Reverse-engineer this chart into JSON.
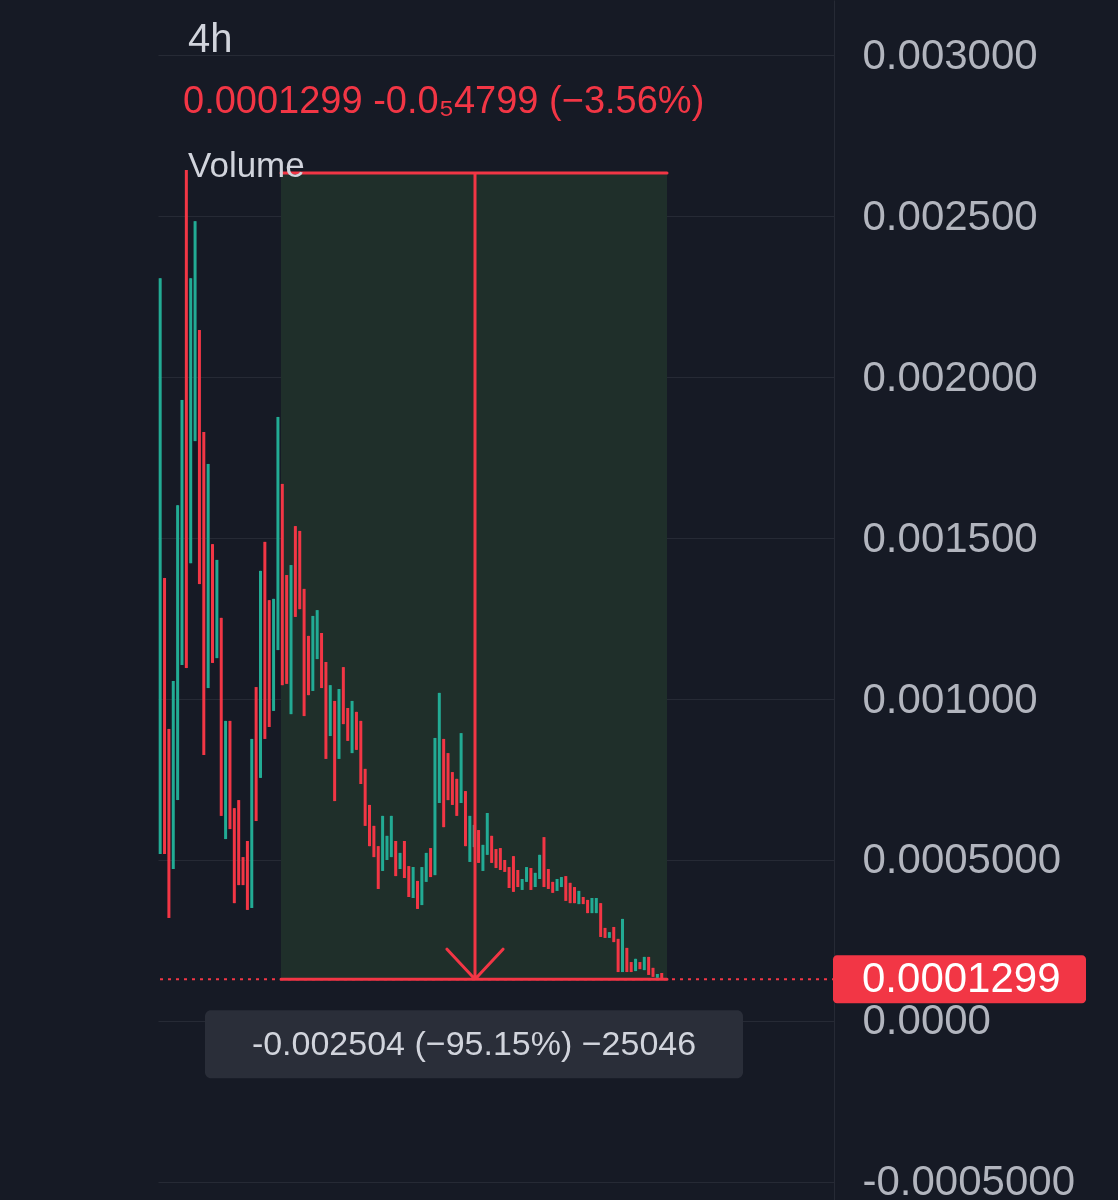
{
  "chart_data": {
    "type": "candlestick",
    "title": "4h",
    "subtitle": "0.0001299 -0.0₅4799 (−3.56%)",
    "annotations": [
      "Volume"
    ],
    "categories": [
      null,
      null,
      null,
      null,
      null,
      null,
      null,
      null,
      null,
      null,
      null,
      null,
      null,
      null,
      null,
      null,
      null,
      null,
      null,
      null,
      null,
      null,
      null,
      null,
      null,
      null,
      null,
      null,
      null,
      null,
      null,
      null,
      null,
      null,
      null,
      null,
      null,
      null,
      null,
      null,
      null,
      null,
      null,
      null,
      null,
      null,
      null,
      null,
      null,
      null,
      null,
      null,
      null,
      null,
      null,
      null,
      null,
      null,
      null,
      null,
      null,
      null,
      null,
      null,
      null,
      null,
      null,
      null,
      null,
      null,
      null,
      null,
      null,
      null,
      null,
      null,
      null,
      null,
      null,
      null,
      null,
      null,
      null,
      null,
      null,
      null,
      null,
      null,
      null,
      null,
      null,
      null,
      null,
      null,
      null,
      null,
      null,
      null,
      null,
      null,
      null,
      null,
      null,
      null,
      null,
      null,
      null,
      null,
      null,
      null,
      null,
      null,
      null,
      null,
      null,
      null,
      null,
      null,
      null,
      null,
      null,
      null,
      null,
      null,
      null,
      null,
      null,
      null,
      null,
      null,
      null,
      null,
      null,
      null,
      null,
      null,
      null,
      null,
      null,
      null,
      null,
      null,
      null,
      null,
      null,
      null,
      null,
      null,
      null,
      null,
      null,
      null,
      null,
      null,
      null
    ],
    "ohlc": [
      [
        0.000519,
        0.002307,
        0.000519,
        0.002307
      ],
      [
        0.001376,
        0.001376,
        0.000519,
        0.000519
      ],
      [
        0.000907,
        0.000907,
        0.00032,
        0.00032
      ],
      [
        0.000472,
        0.001056,
        0.000472,
        0.001056
      ],
      [
        0.000686,
        0.001602,
        0.000686,
        0.001602
      ],
      [
        0.001106,
        0.001929,
        0.001106,
        0.001929
      ],
      [
        0.002643,
        0.002643,
        0.001096,
        0.001096
      ],
      [
        0.001422,
        0.002307,
        0.001422,
        0.002307
      ],
      [
        0.001801,
        0.002484,
        0.001801,
        0.002484
      ],
      [
        0.002146,
        0.002146,
        0.001357,
        0.001357
      ],
      [
        0.001829,
        0.001829,
        0.000826,
        0.000826
      ],
      [
        0.001034,
        0.00173,
        0.001034,
        0.00173
      ],
      [
        0.001481,
        0.001481,
        0.001112,
        0.001112
      ],
      [
        0.001127,
        0.001432,
        0.001127,
        0.001432
      ],
      [
        0.001252,
        0.001252,
        0.000637,
        0.000637
      ],
      [
        0.000565,
        0.000932,
        0.000565,
        0.000932
      ],
      [
        0.000932,
        0.000932,
        0.000596,
        0.000596
      ],
      [
        0.000661,
        0.000661,
        0.000366,
        0.000366
      ],
      [
        0.000686,
        0.000686,
        0.000422,
        0.000422
      ],
      [
        0.000509,
        0.000509,
        0.000422,
        0.000422
      ],
      [
        0.000559,
        0.000559,
        0.000345,
        0.000345
      ],
      [
        0.000351,
        0.000876,
        0.000351,
        0.000876
      ],
      [
        0.001037,
        0.001037,
        0.000621,
        0.000621
      ],
      [
        0.000755,
        0.001398,
        0.000755,
        0.001398
      ],
      [
        0.001488,
        0.001488,
        0.000876,
        0.000876
      ],
      [
        0.001307,
        0.001307,
        0.000913,
        0.000913
      ],
      [
        0.000963,
        0.001311,
        0.000963,
        0.001311
      ],
      [
        0.001152,
        0.001876,
        0.001152,
        0.001876
      ],
      [
        0.001668,
        0.001668,
        0.001043,
        0.001043
      ],
      [
        0.001385,
        0.001385,
        0.001047,
        0.001047
      ],
      [
        0.000953,
        0.001416,
        0.000953,
        0.001416
      ],
      [
        0.001537,
        0.001537,
        0.001255,
        0.001255
      ],
      [
        0.001522,
        0.001522,
        0.001279,
        0.001279
      ],
      [
        0.001342,
        0.001342,
        0.000947,
        0.000947
      ],
      [
        0.001196,
        0.001196,
        0.001012,
        0.001012
      ],
      [
        0.001025,
        0.001258,
        0.001025,
        0.001258
      ],
      [
        0.001124,
        0.001276,
        0.001124,
        0.001276
      ],
      [
        0.001205,
        0.001205,
        0.001034,
        0.001034
      ],
      [
        0.001115,
        0.001115,
        0.000814,
        0.000814
      ],
      [
        0.000885,
        0.001043,
        0.000885,
        0.001043
      ],
      [
        0.000994,
        0.000994,
        0.000683,
        0.000683
      ],
      [
        0.000814,
        0.001031,
        0.000814,
        0.001031
      ],
      [
        0.001099,
        0.001099,
        0.000922,
        0.000922
      ],
      [
        0.000972,
        0.000972,
        0.00087,
        0.00087
      ],
      [
        0.000832,
        0.000994,
        0.000832,
        0.000994
      ],
      [
        0.00096,
        0.00096,
        0.000842,
        0.000842
      ],
      [
        0.000932,
        0.000932,
        0.000736,
        0.000736
      ],
      [
        0.000783,
        0.000783,
        0.000606,
        0.000606
      ],
      [
        0.000671,
        0.000671,
        0.000543,
        0.000543
      ],
      [
        0.000606,
        0.000606,
        0.000509,
        0.000509
      ],
      [
        0.000543,
        0.000543,
        0.00041,
        0.00041
      ],
      [
        0.000466,
        0.000637,
        0.000466,
        0.000637
      ],
      [
        0.0005,
        0.000575,
        0.0005,
        0.000575
      ],
      [
        0.000509,
        0.000637,
        0.000509,
        0.000637
      ],
      [
        0.000559,
        0.000559,
        0.00045,
        0.00045
      ],
      [
        0.000472,
        0.000522,
        0.000472,
        0.000522
      ],
      [
        0.000559,
        0.000559,
        0.000444,
        0.000444
      ],
      [
        0.000481,
        0.000481,
        0.000385,
        0.000385
      ],
      [
        0.000382,
        0.000478,
        0.000382,
        0.000478
      ],
      [
        0.000435,
        0.000435,
        0.000348,
        0.000348
      ],
      [
        0.00036,
        0.000478,
        0.00036,
        0.000478
      ],
      [
        0.000432,
        0.000522,
        0.000432,
        0.000522
      ],
      [
        0.000537,
        0.000537,
        0.000447,
        0.000447
      ],
      [
        0.000453,
        0.000879,
        0.000453,
        0.000879
      ],
      [
        0.000677,
        0.001019,
        0.000677,
        0.001019
      ],
      [
        0.000876,
        0.000876,
        0.000602,
        0.000602
      ],
      [
        0.000832,
        0.000832,
        0.000686,
        0.000686
      ],
      [
        0.000773,
        0.000773,
        0.000671,
        0.000671
      ],
      [
        0.000752,
        0.000752,
        0.000637,
        0.000637
      ],
      [
        0.000677,
        0.000894,
        0.000677,
        0.000894
      ],
      [
        0.000714,
        0.000714,
        0.000543,
        0.000543
      ],
      [
        0.000494,
        0.000637,
        0.000494,
        0.000637
      ],
      [
        0.00054,
        0.000609,
        0.00054,
        0.000609
      ],
      [
        0.000593,
        0.000593,
        0.000491,
        0.000491
      ],
      [
        0.000466,
        0.000547,
        0.000466,
        0.000547
      ],
      [
        0.000516,
        0.000646,
        0.000516,
        0.000646
      ],
      [
        0.000575,
        0.000575,
        0.000491,
        0.000491
      ],
      [
        0.000534,
        0.000534,
        0.000475,
        0.000475
      ],
      [
        0.000537,
        0.000537,
        0.000469,
        0.000469
      ],
      [
        0.0005,
        0.0005,
        0.000463,
        0.000463
      ],
      [
        0.000478,
        0.000478,
        0.000413,
        0.000413
      ],
      [
        0.000512,
        0.000512,
        0.000401,
        0.000401
      ],
      [
        0.000469,
        0.000469,
        0.000416,
        0.000416
      ],
      [
        0.000407,
        0.000441,
        0.000407,
        0.000441
      ],
      [
        0.000432,
        0.000478,
        0.000432,
        0.000478
      ],
      [
        0.000475,
        0.000475,
        0.000407,
        0.000407
      ],
      [
        0.000416,
        0.00046,
        0.000416,
        0.00046
      ],
      [
        0.000441,
        0.000516,
        0.000441,
        0.000516
      ],
      [
        0.000571,
        0.000571,
        0.000416,
        0.000416
      ],
      [
        0.000472,
        0.000472,
        0.00041,
        0.00041
      ],
      [
        0.000432,
        0.000432,
        0.000398,
        0.000398
      ],
      [
        0.000404,
        0.000441,
        0.000404,
        0.000441
      ],
      [
        0.000416,
        0.000447,
        0.000416,
        0.000447
      ],
      [
        0.00045,
        0.00045,
        0.000373,
        0.000373
      ],
      [
        0.000429,
        0.000429,
        0.000366,
        0.000366
      ],
      [
        0.000416,
        0.000416,
        0.000366,
        0.000366
      ],
      [
        0.000363,
        0.000404,
        0.000363,
        0.000404
      ],
      [
        0.000385,
        0.000385,
        0.000363,
        0.000363
      ],
      [
        0.000376,
        0.000376,
        0.000335,
        0.000335
      ],
      [
        0.000335,
        0.000382,
        0.000335,
        0.000382
      ],
      [
        0.000335,
        0.000382,
        0.000335,
        0.000382
      ],
      [
        0.000366,
        0.000366,
        0.000261,
        0.000261
      ],
      [
        0.000289,
        0.000289,
        0.000258,
        0.000258
      ],
      [
        0.000258,
        0.000276,
        0.000258,
        0.000276
      ],
      [
        0.000292,
        0.000292,
        0.000245,
        0.000245
      ],
      [
        0.000255,
        0.000255,
        0.000152,
        0.000152
      ],
      [
        0.000152,
        0.000317,
        0.000152,
        0.000317
      ],
      [
        0.000227,
        0.000227,
        0.000152,
        0.000152
      ],
      [
        0.000183,
        0.000183,
        0.000152,
        0.000152
      ],
      [
        0.000155,
        0.000193,
        0.000155,
        0.000193
      ],
      [
        0.000183,
        0.000183,
        0.000161,
        0.000161
      ],
      [
        0.000158,
        0.000199,
        0.000158,
        0.000199
      ],
      [
        0.000199,
        0.000199,
        0.000143,
        0.000143
      ],
      [
        0.000165,
        0.000165,
        0.000137,
        0.000137
      ],
      [
        0.000134,
        0.000146,
        0.000134,
        0.000146
      ],
      [
        0.000149,
        0.000149,
        0.0001299,
        0.0001299
      ],
      null,
      null,
      null,
      null,
      null,
      null,
      null,
      null,
      null,
      null,
      null,
      null,
      null,
      null,
      null,
      null,
      null,
      null,
      null,
      null,
      null,
      null,
      null,
      null,
      null,
      null,
      null,
      null,
      null,
      null,
      null,
      null,
      null,
      null,
      null,
      null,
      null,
      null,
      null
    ],
    "colors": [
      "#22ab94",
      "#f23645",
      "#f23645",
      "#22ab94",
      "#22ab94",
      "#22ab94",
      "#f23645",
      "#22ab94",
      "#22ab94",
      "#f23645",
      "#f23645",
      "#22ab94",
      "#f23645",
      "#22ab94",
      "#f23645",
      "#22ab94",
      "#f23645",
      "#f23645",
      "#f23645",
      "#f23645",
      "#f23645",
      "#22ab94",
      "#f23645",
      "#22ab94",
      "#f23645",
      "#f23645",
      "#22ab94",
      "#22ab94",
      "#f23645",
      "#f23645",
      "#22ab94",
      "#f23645",
      "#f23645",
      "#f23645",
      "#f23645",
      "#22ab94",
      "#22ab94",
      "#f23645",
      "#f23645",
      "#22ab94",
      "#f23645",
      "#22ab94",
      "#f23645",
      "#f23645",
      "#22ab94",
      "#f23645",
      "#f23645",
      "#f23645",
      "#f23645",
      "#f23645",
      "#f23645",
      "#22ab94",
      "#22ab94",
      "#22ab94",
      "#f23645",
      "#22ab94",
      "#f23645",
      "#f23645",
      "#22ab94",
      "#f23645",
      "#22ab94",
      "#22ab94",
      "#f23645",
      "#22ab94",
      "#22ab94",
      "#f23645",
      "#f23645",
      "#f23645",
      "#f23645",
      "#22ab94",
      "#f23645",
      "#22ab94",
      "#22ab94",
      "#f23645",
      "#22ab94",
      "#22ab94",
      "#f23645",
      "#f23645",
      "#f23645",
      "#f23645",
      "#f23645",
      "#f23645",
      "#f23645",
      "#22ab94",
      "#22ab94",
      "#f23645",
      "#22ab94",
      "#22ab94",
      "#f23645",
      "#f23645",
      "#f23645",
      "#22ab94",
      "#22ab94",
      "#f23645",
      "#f23645",
      "#f23645",
      "#22ab94",
      "#f23645",
      "#f23645",
      "#22ab94",
      "#22ab94",
      "#f23645",
      "#f23645",
      "#22ab94",
      "#f23645",
      "#f23645",
      "#22ab94",
      "#f23645",
      "#f23645",
      "#22ab94",
      "#f23645",
      "#22ab94",
      "#f23645",
      "#f23645",
      "#22ab94",
      "#f23645",
      null,
      null,
      null,
      null,
      null,
      null,
      null,
      null,
      null,
      null,
      null,
      null,
      null,
      null,
      null,
      null,
      null,
      null,
      null,
      null,
      null,
      null,
      null,
      null,
      null,
      null,
      null,
      null,
      null,
      null,
      null,
      null,
      null,
      null,
      null,
      null,
      null,
      null,
      null
    ],
    "ylim": [
      -0.000556,
      0.003171
    ],
    "yticks": [
      {
        "value": 0.003,
        "label": "0.003000"
      },
      {
        "value": 0.0025,
        "label": "0.002500"
      },
      {
        "value": 0.002,
        "label": "0.002000"
      },
      {
        "value": 0.0015,
        "label": "0.001500"
      },
      {
        "value": 0.001,
        "label": "0.001000"
      },
      {
        "value": 0.0005,
        "label": "0.0005000"
      },
      {
        "value": 0,
        "label": "0.0000"
      },
      {
        "value": -0.0005,
        "label": "-0.0005000"
      }
    ],
    "ref_lines": [
      {
        "axis": "y",
        "value": 0.0001299,
        "label": "0.0001299",
        "color": "#f23645",
        "line_style": "dotted"
      }
    ],
    "bands": [
      {
        "axis": "y",
        "from": 0.0026339,
        "to": 0.0001299,
        "label": "-0.002504 (−95.15%) −25046",
        "color": "#1f2f2a"
      }
    ],
    "grid": "y",
    "tick_labels": "y"
  }
}
